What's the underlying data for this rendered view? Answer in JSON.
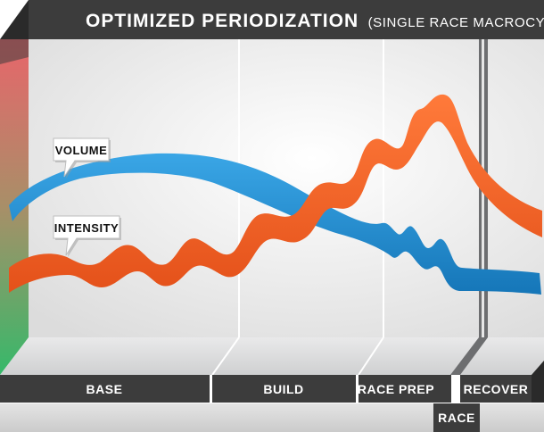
{
  "title": {
    "main": "OPTIMIZED PERIODIZATION",
    "subtitle": "(SINGLE RACE MACROCYLE)"
  },
  "curves": {
    "volume": {
      "label": "VOLUME",
      "color": "#1b8fd2"
    },
    "intensity": {
      "label": "INTENSITY",
      "color": "#f26522"
    }
  },
  "phases": [
    {
      "id": "base",
      "label": "BASE"
    },
    {
      "id": "build",
      "label": "BUILD"
    },
    {
      "id": "race-prep",
      "label": "RACE PREP"
    },
    {
      "id": "race",
      "label": "RACE"
    },
    {
      "id": "recover",
      "label": "RECOVER"
    }
  ],
  "colors": {
    "dark_bar": "#3c3c3c",
    "floor": "#d9dadb",
    "gradient_top": "#e8656b",
    "gradient_bottom": "#36b96a"
  }
}
